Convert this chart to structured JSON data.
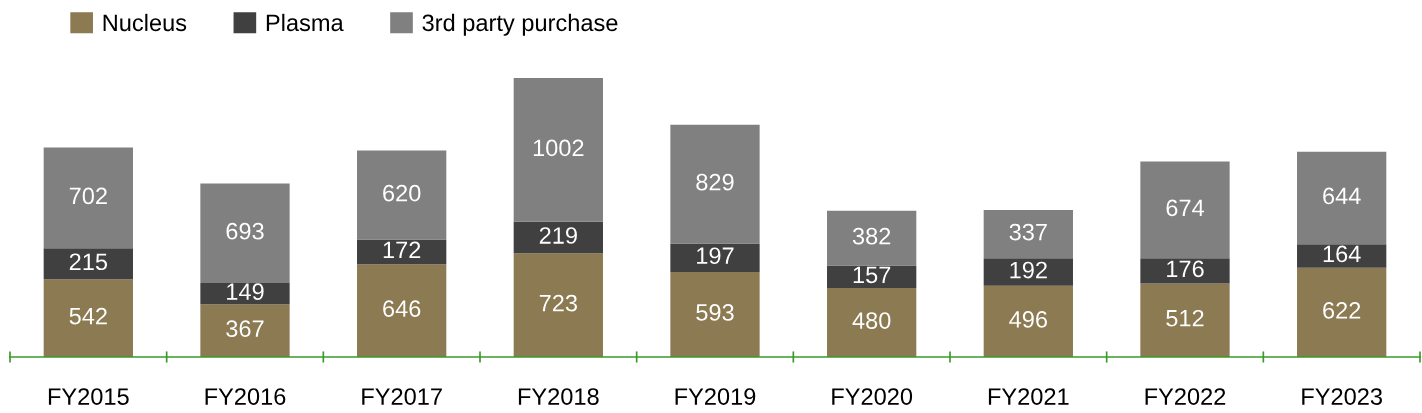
{
  "chart_data": {
    "type": "bar",
    "stacked": true,
    "data_labels": true,
    "legend": "top left",
    "grid": false,
    "categories": [
      "FY2015",
      "FY2016",
      "FY2017",
      "FY2018",
      "FY2019",
      "FY2020",
      "FY2021",
      "FY2022",
      "FY2023"
    ],
    "series": [
      {
        "name": "Nucleus",
        "color": "#8b7a52",
        "values": [
          542,
          367,
          646,
          723,
          593,
          480,
          496,
          512,
          622
        ]
      },
      {
        "name": "Plasma",
        "color": "#404040",
        "values": [
          215,
          149,
          172,
          219,
          197,
          157,
          192,
          176,
          164
        ]
      },
      {
        "name": "3rd party purchase",
        "color": "#808080",
        "values": [
          702,
          693,
          620,
          1002,
          829,
          382,
          337,
          674,
          644
        ]
      }
    ]
  }
}
